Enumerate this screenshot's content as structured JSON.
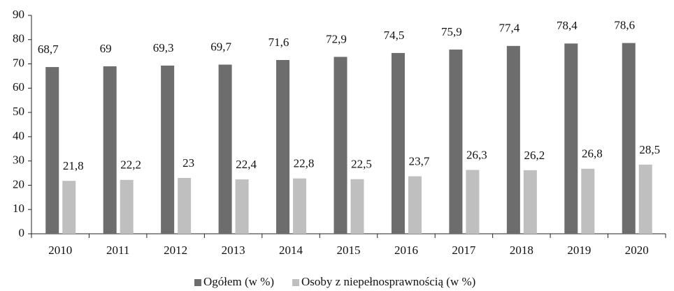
{
  "chart_data": {
    "type": "bar",
    "categories": [
      "2010",
      "2011",
      "2012",
      "2013",
      "2014",
      "2015",
      "2016",
      "2017",
      "2018",
      "2019",
      "2020"
    ],
    "series": [
      {
        "name": "Ogółem (w %)",
        "color": "#6d6d6d",
        "values": [
          68.7,
          69,
          69.3,
          69.7,
          71.6,
          72.9,
          74.5,
          75.9,
          77.4,
          78.4,
          78.6
        ],
        "value_labels": [
          "68,7",
          "69",
          "69,3",
          "69,7",
          "71,6",
          "72,9",
          "74,5",
          "75,9",
          "77,4",
          "78,4",
          "78,6"
        ]
      },
      {
        "name": "Osoby z niepełnosprawnością (w %)",
        "color": "#bfbfbf",
        "values": [
          21.8,
          22.2,
          23,
          22.4,
          22.8,
          22.5,
          23.7,
          26.3,
          26.2,
          26.8,
          28.5
        ],
        "value_labels": [
          "21,8",
          "22,2",
          "23",
          "22,4",
          "22,8",
          "22,5",
          "23,7",
          "26,3",
          "26,2",
          "26,8",
          "28,5"
        ]
      }
    ],
    "ylim": [
      0,
      90
    ],
    "yticks": [
      0,
      10,
      20,
      30,
      40,
      50,
      60,
      70,
      80,
      90
    ],
    "grid": false,
    "legend": "bottom"
  }
}
